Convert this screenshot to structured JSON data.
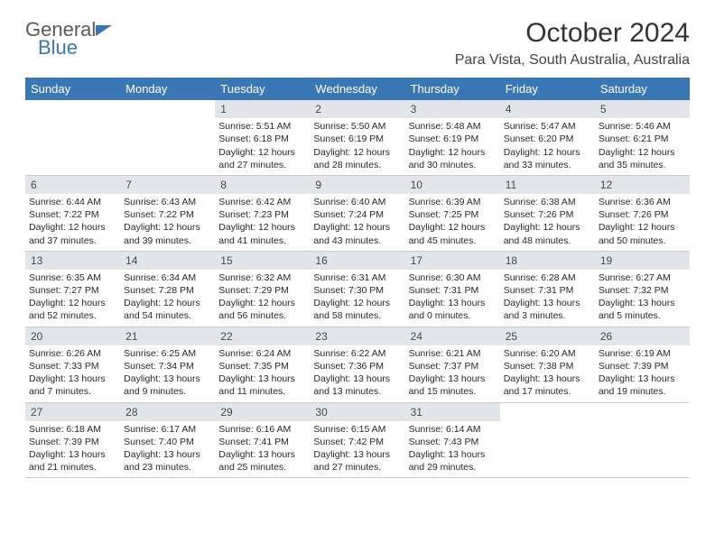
{
  "logo": {
    "line1": "General",
    "line2": "Blue"
  },
  "title": "October 2024",
  "location": "Para Vista, South Australia, Australia",
  "colors": {
    "header_bg": "#3a78b5",
    "daynum_bg": "#e2e6ea",
    "border": "#c9cfd4",
    "logo_gray": "#5a5a5a",
    "logo_blue": "#3a78b5"
  },
  "dayNames": [
    "Sunday",
    "Monday",
    "Tuesday",
    "Wednesday",
    "Thursday",
    "Friday",
    "Saturday"
  ],
  "weeks": [
    [
      {
        "day": "",
        "lines": []
      },
      {
        "day": "",
        "lines": []
      },
      {
        "day": "1",
        "lines": [
          "Sunrise: 5:51 AM",
          "Sunset: 6:18 PM",
          "Daylight: 12 hours",
          "and 27 minutes."
        ]
      },
      {
        "day": "2",
        "lines": [
          "Sunrise: 5:50 AM",
          "Sunset: 6:19 PM",
          "Daylight: 12 hours",
          "and 28 minutes."
        ]
      },
      {
        "day": "3",
        "lines": [
          "Sunrise: 5:48 AM",
          "Sunset: 6:19 PM",
          "Daylight: 12 hours",
          "and 30 minutes."
        ]
      },
      {
        "day": "4",
        "lines": [
          "Sunrise: 5:47 AM",
          "Sunset: 6:20 PM",
          "Daylight: 12 hours",
          "and 33 minutes."
        ]
      },
      {
        "day": "5",
        "lines": [
          "Sunrise: 5:46 AM",
          "Sunset: 6:21 PM",
          "Daylight: 12 hours",
          "and 35 minutes."
        ]
      }
    ],
    [
      {
        "day": "6",
        "lines": [
          "Sunrise: 6:44 AM",
          "Sunset: 7:22 PM",
          "Daylight: 12 hours",
          "and 37 minutes."
        ]
      },
      {
        "day": "7",
        "lines": [
          "Sunrise: 6:43 AM",
          "Sunset: 7:22 PM",
          "Daylight: 12 hours",
          "and 39 minutes."
        ]
      },
      {
        "day": "8",
        "lines": [
          "Sunrise: 6:42 AM",
          "Sunset: 7:23 PM",
          "Daylight: 12 hours",
          "and 41 minutes."
        ]
      },
      {
        "day": "9",
        "lines": [
          "Sunrise: 6:40 AM",
          "Sunset: 7:24 PM",
          "Daylight: 12 hours",
          "and 43 minutes."
        ]
      },
      {
        "day": "10",
        "lines": [
          "Sunrise: 6:39 AM",
          "Sunset: 7:25 PM",
          "Daylight: 12 hours",
          "and 45 minutes."
        ]
      },
      {
        "day": "11",
        "lines": [
          "Sunrise: 6:38 AM",
          "Sunset: 7:26 PM",
          "Daylight: 12 hours",
          "and 48 minutes."
        ]
      },
      {
        "day": "12",
        "lines": [
          "Sunrise: 6:36 AM",
          "Sunset: 7:26 PM",
          "Daylight: 12 hours",
          "and 50 minutes."
        ]
      }
    ],
    [
      {
        "day": "13",
        "lines": [
          "Sunrise: 6:35 AM",
          "Sunset: 7:27 PM",
          "Daylight: 12 hours",
          "and 52 minutes."
        ]
      },
      {
        "day": "14",
        "lines": [
          "Sunrise: 6:34 AM",
          "Sunset: 7:28 PM",
          "Daylight: 12 hours",
          "and 54 minutes."
        ]
      },
      {
        "day": "15",
        "lines": [
          "Sunrise: 6:32 AM",
          "Sunset: 7:29 PM",
          "Daylight: 12 hours",
          "and 56 minutes."
        ]
      },
      {
        "day": "16",
        "lines": [
          "Sunrise: 6:31 AM",
          "Sunset: 7:30 PM",
          "Daylight: 12 hours",
          "and 58 minutes."
        ]
      },
      {
        "day": "17",
        "lines": [
          "Sunrise: 6:30 AM",
          "Sunset: 7:31 PM",
          "Daylight: 13 hours",
          "and 0 minutes."
        ]
      },
      {
        "day": "18",
        "lines": [
          "Sunrise: 6:28 AM",
          "Sunset: 7:31 PM",
          "Daylight: 13 hours",
          "and 3 minutes."
        ]
      },
      {
        "day": "19",
        "lines": [
          "Sunrise: 6:27 AM",
          "Sunset: 7:32 PM",
          "Daylight: 13 hours",
          "and 5 minutes."
        ]
      }
    ],
    [
      {
        "day": "20",
        "lines": [
          "Sunrise: 6:26 AM",
          "Sunset: 7:33 PM",
          "Daylight: 13 hours",
          "and 7 minutes."
        ]
      },
      {
        "day": "21",
        "lines": [
          "Sunrise: 6:25 AM",
          "Sunset: 7:34 PM",
          "Daylight: 13 hours",
          "and 9 minutes."
        ]
      },
      {
        "day": "22",
        "lines": [
          "Sunrise: 6:24 AM",
          "Sunset: 7:35 PM",
          "Daylight: 13 hours",
          "and 11 minutes."
        ]
      },
      {
        "day": "23",
        "lines": [
          "Sunrise: 6:22 AM",
          "Sunset: 7:36 PM",
          "Daylight: 13 hours",
          "and 13 minutes."
        ]
      },
      {
        "day": "24",
        "lines": [
          "Sunrise: 6:21 AM",
          "Sunset: 7:37 PM",
          "Daylight: 13 hours",
          "and 15 minutes."
        ]
      },
      {
        "day": "25",
        "lines": [
          "Sunrise: 6:20 AM",
          "Sunset: 7:38 PM",
          "Daylight: 13 hours",
          "and 17 minutes."
        ]
      },
      {
        "day": "26",
        "lines": [
          "Sunrise: 6:19 AM",
          "Sunset: 7:39 PM",
          "Daylight: 13 hours",
          "and 19 minutes."
        ]
      }
    ],
    [
      {
        "day": "27",
        "lines": [
          "Sunrise: 6:18 AM",
          "Sunset: 7:39 PM",
          "Daylight: 13 hours",
          "and 21 minutes."
        ]
      },
      {
        "day": "28",
        "lines": [
          "Sunrise: 6:17 AM",
          "Sunset: 7:40 PM",
          "Daylight: 13 hours",
          "and 23 minutes."
        ]
      },
      {
        "day": "29",
        "lines": [
          "Sunrise: 6:16 AM",
          "Sunset: 7:41 PM",
          "Daylight: 13 hours",
          "and 25 minutes."
        ]
      },
      {
        "day": "30",
        "lines": [
          "Sunrise: 6:15 AM",
          "Sunset: 7:42 PM",
          "Daylight: 13 hours",
          "and 27 minutes."
        ]
      },
      {
        "day": "31",
        "lines": [
          "Sunrise: 6:14 AM",
          "Sunset: 7:43 PM",
          "Daylight: 13 hours",
          "and 29 minutes."
        ]
      },
      {
        "day": "",
        "lines": []
      },
      {
        "day": "",
        "lines": []
      }
    ]
  ]
}
